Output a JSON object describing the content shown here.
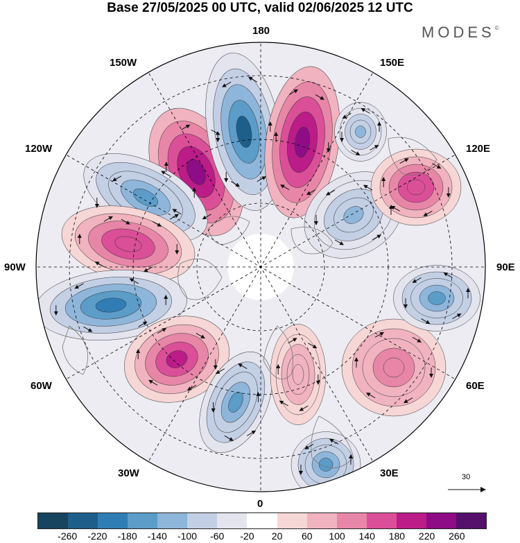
{
  "title": "Base 27/05/2025 00 UTC, valid 02/06/2025 12 UTC",
  "brand": {
    "name": "MODES",
    "mark": "©"
  },
  "longitude_labels": {
    "lon_180": "180",
    "lon_150w": "150W",
    "lon_150e": "150E",
    "lon_120w": "120W",
    "lon_120e": "120E",
    "lon_90w": "90W",
    "lon_90e": "90E",
    "lon_60w": "60W",
    "lon_60e": "60E",
    "lon_30w": "30W",
    "lon_30e": "30E",
    "lon_0": "0"
  },
  "reference_vector": {
    "value": "30"
  },
  "colorbar": {
    "colors": [
      "#17445f",
      "#1d5f8a",
      "#2f7db4",
      "#5b9cc9",
      "#8eb6da",
      "#c3cfe5",
      "#e4e4ef",
      "#ffffff",
      "#f7d6d6",
      "#f0b3bf",
      "#e886a8",
      "#db4f98",
      "#bb1c88",
      "#8e0c85",
      "#55106b"
    ],
    "ticks": [
      "-260",
      "-220",
      "-180",
      "-140",
      "-100",
      "-60",
      "-20",
      "20",
      "60",
      "100",
      "140",
      "180",
      "220",
      "260"
    ]
  },
  "map_features": {
    "projection": "north-polar-stereographic",
    "graticule": "dashed",
    "anomaly_cells": [
      {
        "sign": "positive",
        "level": 260
      },
      {
        "sign": "negative",
        "level": -220
      },
      {
        "sign": "positive",
        "level": 260
      },
      {
        "sign": "negative",
        "level": -140
      },
      {
        "sign": "positive",
        "level": 180
      },
      {
        "sign": "negative",
        "level": -180
      },
      {
        "sign": "positive",
        "level": 220
      },
      {
        "sign": "negative",
        "level": -140
      },
      {
        "sign": "positive",
        "level": 100
      },
      {
        "sign": "negative",
        "level": -100
      },
      {
        "sign": "positive",
        "level": 140
      },
      {
        "sign": "negative",
        "level": -140
      },
      {
        "sign": "positive",
        "level": 180
      },
      {
        "sign": "negative",
        "level": -100
      },
      {
        "sign": "negative",
        "level": -140
      }
    ]
  }
}
